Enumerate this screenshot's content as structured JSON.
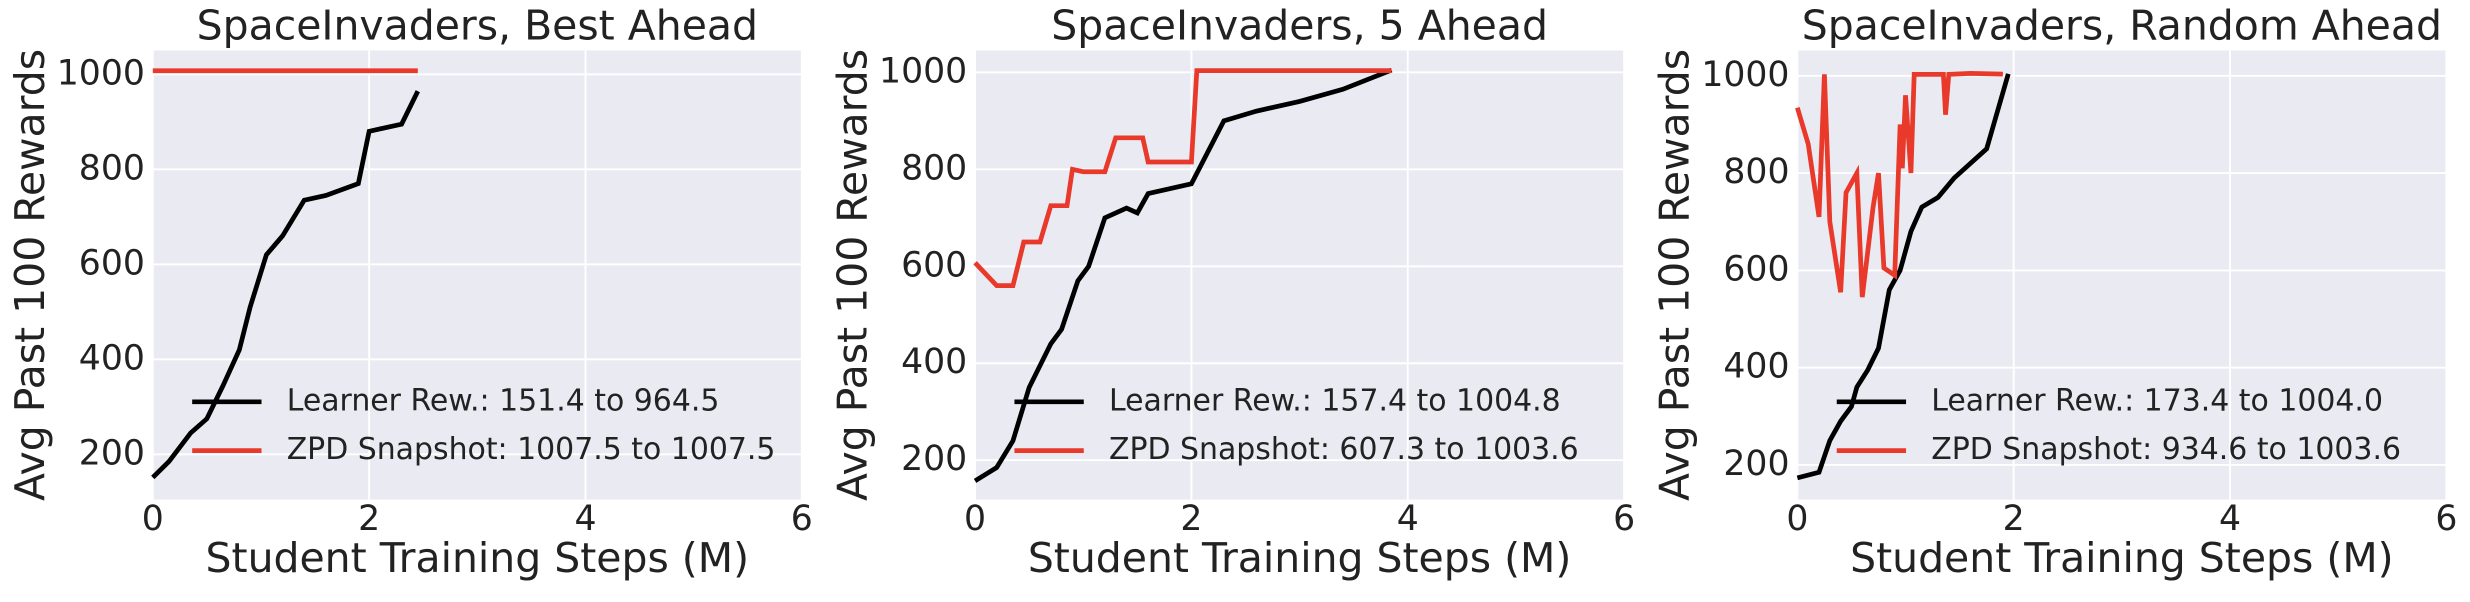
{
  "chart_data": [
    {
      "type": "line",
      "title": "SpaceInvaders, Best Ahead",
      "xlabel": "Student Training Steps (M)",
      "ylabel": "Avg Past 100 Rewards",
      "xlim": [
        0,
        6
      ],
      "ylim": [
        105,
        1050
      ],
      "xticks": [
        0,
        2,
        4,
        6
      ],
      "yticks": [
        200,
        400,
        600,
        800,
        1000
      ],
      "grid": true,
      "legend": "lower right",
      "series": [
        {
          "name": "Learner Rew.: 151.4 to 964.5",
          "color": "#000000",
          "x": [
            0,
            0.15,
            0.35,
            0.5,
            0.65,
            0.8,
            0.9,
            1.05,
            1.2,
            1.4,
            1.6,
            1.9,
            2.0,
            2.3,
            2.45
          ],
          "values": [
            151.4,
            185,
            245,
            275,
            345,
            420,
            510,
            620,
            660,
            735,
            745,
            770,
            880,
            895,
            964.5
          ]
        },
        {
          "name": "ZPD Snapshot: 1007.5 to 1007.5",
          "color": "#e8392b",
          "x": [
            0,
            2.45
          ],
          "values": [
            1007.5,
            1007.5
          ]
        }
      ]
    },
    {
      "type": "line",
      "title": "SpaceInvaders, 5 Ahead",
      "xlabel": "Student Training Steps (M)",
      "ylabel": "Avg Past 100 Rewards",
      "xlim": [
        0,
        6
      ],
      "ylim": [
        119,
        1045
      ],
      "xticks": [
        0,
        2,
        4,
        6
      ],
      "yticks": [
        200,
        400,
        600,
        800,
        1000
      ],
      "grid": true,
      "legend": "lower right",
      "series": [
        {
          "name": "Learner Rew.: 157.4 to 1004.8",
          "color": "#000000",
          "x": [
            0,
            0.2,
            0.35,
            0.5,
            0.7,
            0.8,
            0.95,
            1.05,
            1.2,
            1.4,
            1.5,
            1.6,
            2.0,
            2.3,
            2.6,
            3.0,
            3.4,
            3.85
          ],
          "values": [
            157.4,
            185,
            240,
            350,
            440,
            470,
            570,
            600,
            700,
            720,
            710,
            750,
            770,
            900,
            920,
            940,
            965,
            1004.8
          ]
        },
        {
          "name": "ZPD Snapshot: 607.3 to 1003.6",
          "color": "#e8392b",
          "x": [
            0,
            0.2,
            0.35,
            0.45,
            0.6,
            0.7,
            0.85,
            0.9,
            1.0,
            1.2,
            1.3,
            1.55,
            1.6,
            2.0,
            2.05,
            3.85
          ],
          "values": [
            607.3,
            560,
            560,
            650,
            650,
            725,
            725,
            800,
            795,
            795,
            865,
            865,
            815,
            815,
            1003.6,
            1003.6
          ]
        }
      ]
    },
    {
      "type": "line",
      "title": "SpaceInvaders, Random Ahead",
      "xlabel": "Student Training Steps (M)",
      "ylabel": "Avg Past 100 Rewards",
      "xlim": [
        0,
        6
      ],
      "ylim": [
        129,
        1052
      ],
      "xticks": [
        0,
        2,
        4,
        6
      ],
      "yticks": [
        200,
        400,
        600,
        800,
        1000
      ],
      "grid": true,
      "legend": "lower right",
      "series": [
        {
          "name": "Learner Rew.: 173.4 to 1004.0",
          "color": "#000000",
          "x": [
            0,
            0.2,
            0.3,
            0.4,
            0.5,
            0.55,
            0.65,
            0.75,
            0.85,
            0.95,
            1.0,
            1.05,
            1.15,
            1.3,
            1.45,
            1.6,
            1.75,
            1.95
          ],
          "values": [
            173.4,
            185,
            250,
            290,
            320,
            360,
            395,
            440,
            560,
            600,
            640,
            680,
            730,
            750,
            790,
            820,
            850,
            1004.0
          ]
        },
        {
          "name": "ZPD Snapshot: 934.6 to 1003.6",
          "color": "#e8392b",
          "x": [
            0,
            0.1,
            0.2,
            0.25,
            0.3,
            0.4,
            0.45,
            0.55,
            0.6,
            0.7,
            0.75,
            0.8,
            0.9,
            0.95,
            0.97,
            1.0,
            1.05,
            1.08,
            1.35,
            1.37,
            1.4,
            1.6,
            1.9
          ],
          "values": [
            934.6,
            860,
            710,
            1003,
            700,
            555,
            760,
            800,
            545,
            730,
            800,
            605,
            590,
            900,
            810,
            960,
            800,
            1003,
            1003,
            920,
            1003,
            1005,
            1003.6
          ]
        }
      ]
    }
  ]
}
